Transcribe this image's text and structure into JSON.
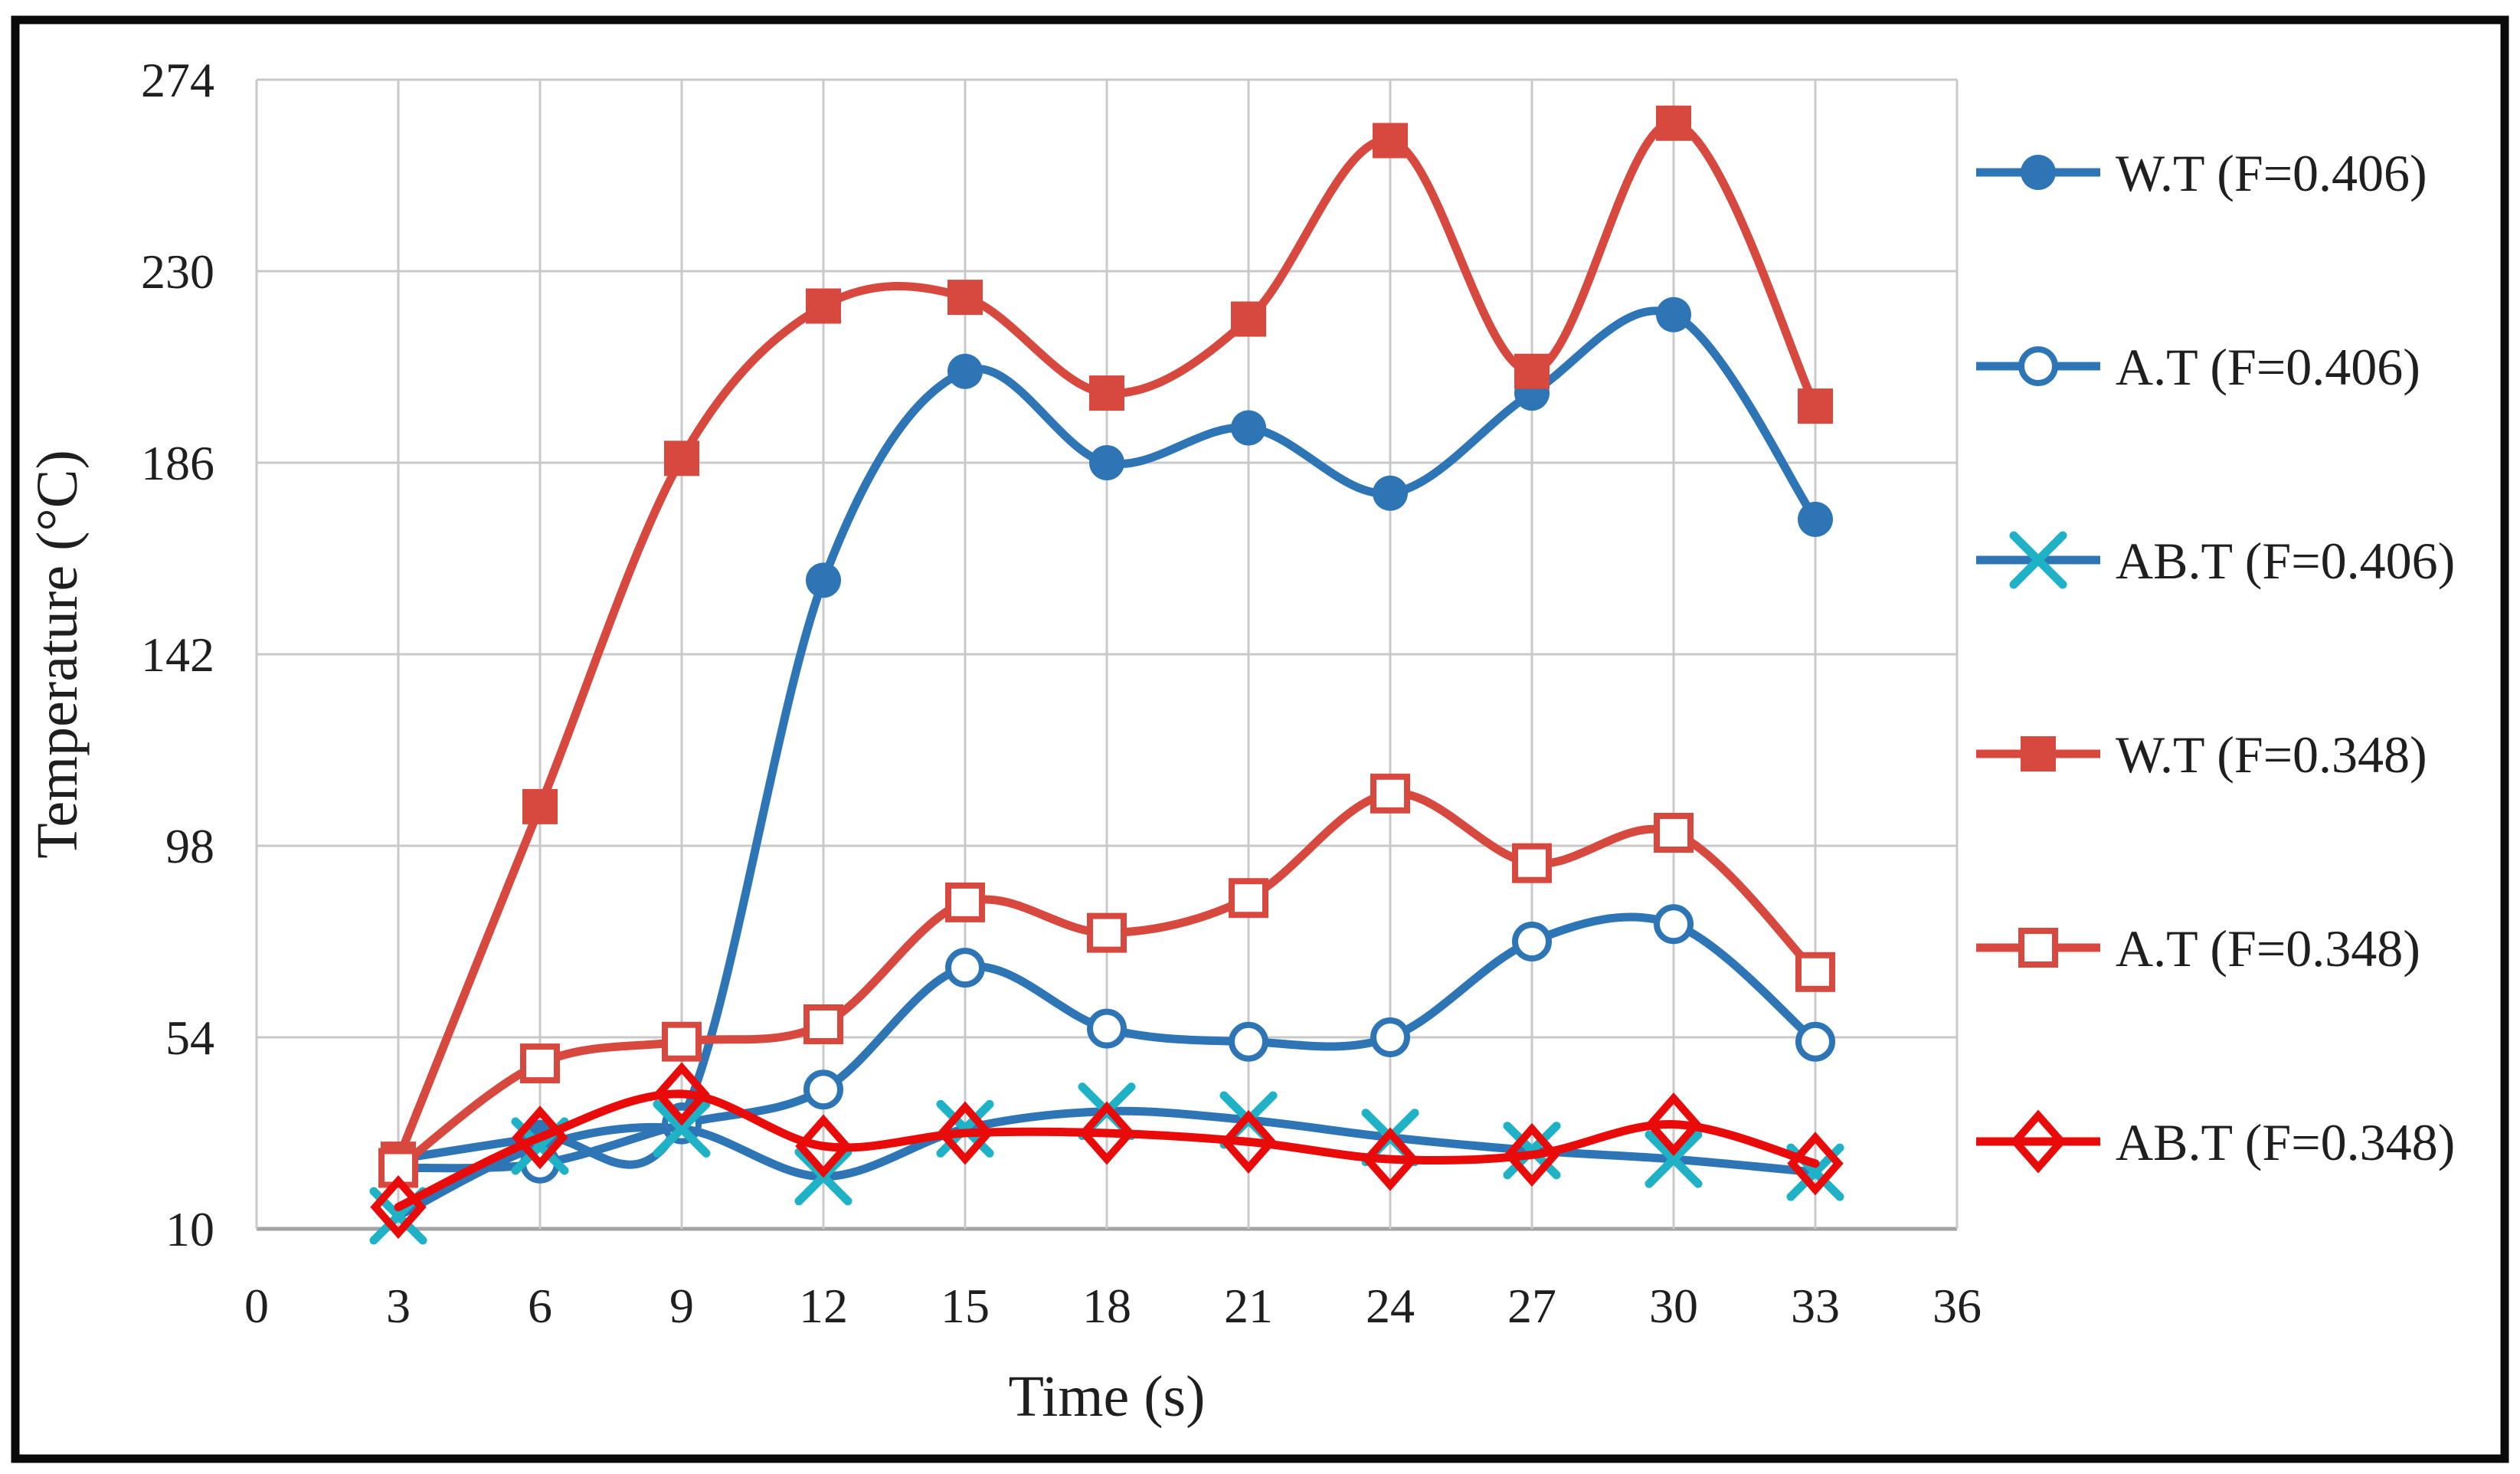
{
  "figure": {
    "border_color": "#0a0a0a",
    "background": "#ffffff",
    "grid_color": "#c9c9c9",
    "axis_line_color": "#a3a3a3",
    "text_color": "#1f1f1f"
  },
  "chart_data": {
    "type": "line",
    "title": "",
    "xlabel": "Time (s)",
    "ylabel": "Temperature (°C)",
    "grid": true,
    "legend_position": "right",
    "x": [
      3,
      6,
      9,
      12,
      15,
      18,
      21,
      24,
      27,
      30,
      33
    ],
    "x_axis": {
      "min": 0,
      "max": 36,
      "step": 3,
      "ticks": [
        0,
        3,
        6,
        9,
        12,
        15,
        18,
        21,
        24,
        27,
        30,
        33,
        36
      ]
    },
    "y_axis": {
      "min": 10,
      "max": 274,
      "step": 44,
      "ticks": [
        10,
        54,
        98,
        142,
        186,
        230,
        274
      ]
    },
    "series": [
      {
        "name": "W.T (F=0.406)",
        "color": "#2E75B6",
        "marker": "circle-filled",
        "marker_color": "#2E75B6",
        "values": [
          26,
          31,
          35,
          159,
          207,
          186,
          194,
          179,
          202,
          220,
          173
        ]
      },
      {
        "name": "A.T (F=0.406)",
        "color": "#2E75B6",
        "marker": "circle-open",
        "marker_color": "#2E75B6",
        "values": [
          24,
          25,
          34,
          42,
          70,
          56,
          53,
          54,
          76,
          80,
          53
        ]
      },
      {
        "name": "AB.T (F=0.406)",
        "color": "#2E75B6",
        "marker": "x",
        "marker_color": "#1FB1C6",
        "values": [
          13,
          29,
          33,
          22,
          33,
          37,
          35,
          31,
          28,
          26,
          23
        ]
      },
      {
        "name": "W.T (F=0.348)",
        "color": "#D7483F",
        "marker": "square-filled",
        "marker_color": "#D7483F",
        "values": [
          26,
          107,
          187,
          222,
          224,
          202,
          219,
          260,
          207,
          264,
          199
        ]
      },
      {
        "name": "A.T (F=0.348)",
        "color": "#D7483F",
        "marker": "square-open",
        "marker_color": "#D7483F",
        "values": [
          24,
          48,
          53,
          57,
          85,
          78,
          86,
          110,
          94,
          101,
          69
        ]
      },
      {
        "name": "AB.T (F=0.348)",
        "color": "#E90A0A",
        "marker": "diamond-open",
        "marker_color": "#E90A0A",
        "values": [
          15,
          31,
          41,
          29,
          32,
          32,
          30,
          26,
          27,
          34,
          25
        ]
      }
    ]
  }
}
